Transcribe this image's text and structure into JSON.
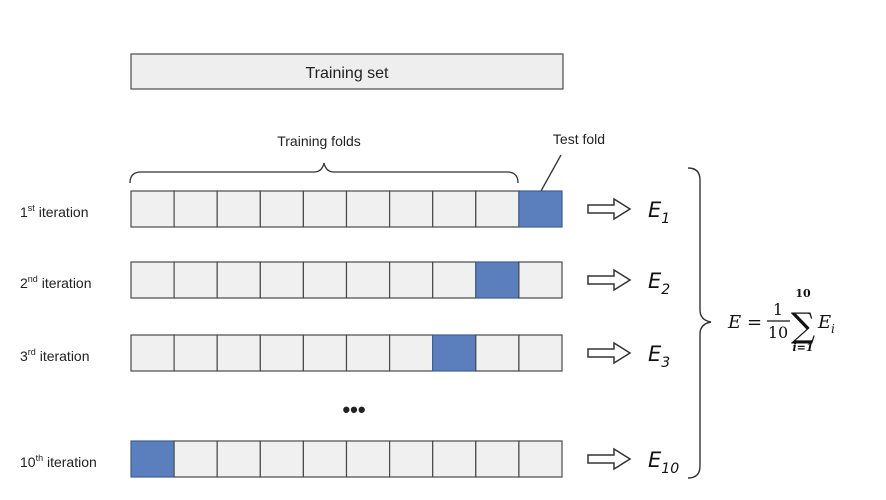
{
  "training_set_label": "Training set",
  "training_folds_label": "Training folds",
  "test_fold_label": "Test fold",
  "iterations": [
    {
      "num": "1",
      "sup": "st",
      "word": " iteration",
      "test_fold_index": 10,
      "error_base": "E",
      "error_sub": "1"
    },
    {
      "num": "2",
      "sup": "nd",
      "word": " iteration",
      "test_fold_index": 9,
      "error_base": "E",
      "error_sub": "2"
    },
    {
      "num": "3",
      "sup": "rd",
      "word": " iteration",
      "test_fold_index": 8,
      "error_base": "E",
      "error_sub": "3"
    },
    {
      "num": "10",
      "sup": "th",
      "word": " iteration",
      "test_fold_index": 1,
      "error_base": "E",
      "error_sub": "10"
    }
  ],
  "fold_count": 10,
  "ellipsis": "•••",
  "formula": {
    "lhs": "E",
    "equals": "=",
    "frac_num": "1",
    "frac_den": "10",
    "sum_symbol": "∑",
    "sum_upper": "10",
    "sum_lower": "i=1",
    "term_base": "E",
    "term_sub": "i"
  },
  "colors": {
    "cell_fill": "#f0f0f0",
    "cell_stroke": "#4a4a4a",
    "test_fill": "#5b7fbc",
    "test_stroke": "#3d5f94",
    "training_set_fill": "#eeeeee"
  }
}
